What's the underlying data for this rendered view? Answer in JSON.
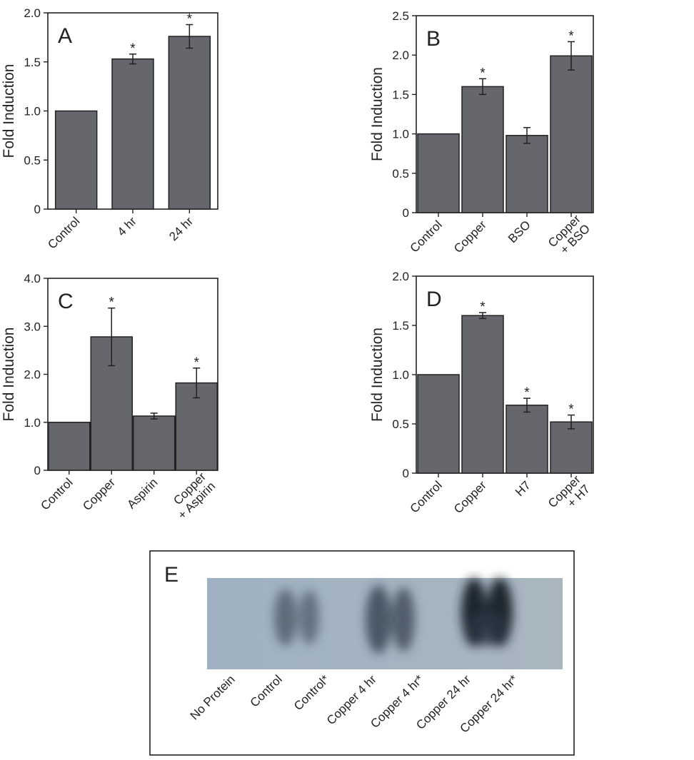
{
  "chart_data": [
    {
      "type": "bar",
      "label": "A",
      "y_label": "Fold Induction",
      "categories": [
        "Control",
        "4 hr",
        "24 hr"
      ],
      "values": [
        1.0,
        1.53,
        1.76
      ],
      "errors": [
        null,
        0.05,
        0.12
      ],
      "markers": [
        null,
        "*",
        "*"
      ],
      "color": "#66676d",
      "ylim": [
        0,
        2
      ],
      "yticks": [
        0,
        0.5,
        {
          "value": 1,
          "label": "1.0"
        },
        1.5,
        {
          "value": 2,
          "label": "2.0"
        }
      ]
    },
    {
      "type": "bar",
      "label": "B",
      "y_label": "Fold Induction",
      "categories": [
        "Control",
        "Copper",
        "BSO",
        "Copper\n+ BSO"
      ],
      "values": [
        1.0,
        1.6,
        0.98,
        1.99
      ],
      "errors": [
        null,
        0.1,
        0.1,
        0.18
      ],
      "markers": [
        null,
        "*",
        null,
        "*"
      ],
      "color": "#66676d",
      "ylim": [
        0,
        2.5
      ],
      "yticks": [
        0,
        0.5,
        {
          "value": 1,
          "label": "1.0"
        },
        1.5,
        {
          "value": 2,
          "label": "2.0"
        },
        2.5
      ]
    },
    {
      "type": "bar",
      "label": "C",
      "y_label": "Fold Induction",
      "categories": [
        "Control",
        "Copper",
        "Aspirin",
        "Copper\n+ Aspirin"
      ],
      "values": [
        1.0,
        2.78,
        1.13,
        1.82
      ],
      "errors": [
        null,
        0.6,
        0.06,
        0.31
      ],
      "markers": [
        null,
        "*",
        null,
        "*"
      ],
      "color": "#66676d",
      "ylim": [
        0,
        4
      ],
      "yticks": [
        0,
        {
          "value": 1,
          "label": "1.0"
        },
        {
          "value": 2,
          "label": "2.0"
        },
        {
          "value": 3,
          "label": "3.0"
        },
        {
          "value": 4,
          "label": "4.0"
        }
      ]
    },
    {
      "type": "bar",
      "label": "D",
      "y_label": "Fold Induction",
      "categories": [
        "Control",
        "Copper",
        "H7",
        "Copper\n+ H7"
      ],
      "values": [
        1.0,
        1.6,
        0.69,
        0.52
      ],
      "errors": [
        null,
        0.03,
        0.07,
        0.07
      ],
      "markers": [
        null,
        "*",
        "*",
        "*"
      ],
      "color": "#66676d",
      "ylim": [
        0,
        2
      ],
      "yticks": [
        0,
        0.5,
        {
          "value": 1,
          "label": "1.0"
        },
        1.5,
        {
          "value": 2,
          "label": "2.0"
        }
      ]
    }
  ],
  "gel": {
    "label": "E",
    "lanes": [
      "No Protein",
      "Control",
      "Control*",
      "Copper 4 hr",
      "Copper 4 hr*",
      "Copper 24 hr",
      "Copper 24 hr*"
    ]
  }
}
